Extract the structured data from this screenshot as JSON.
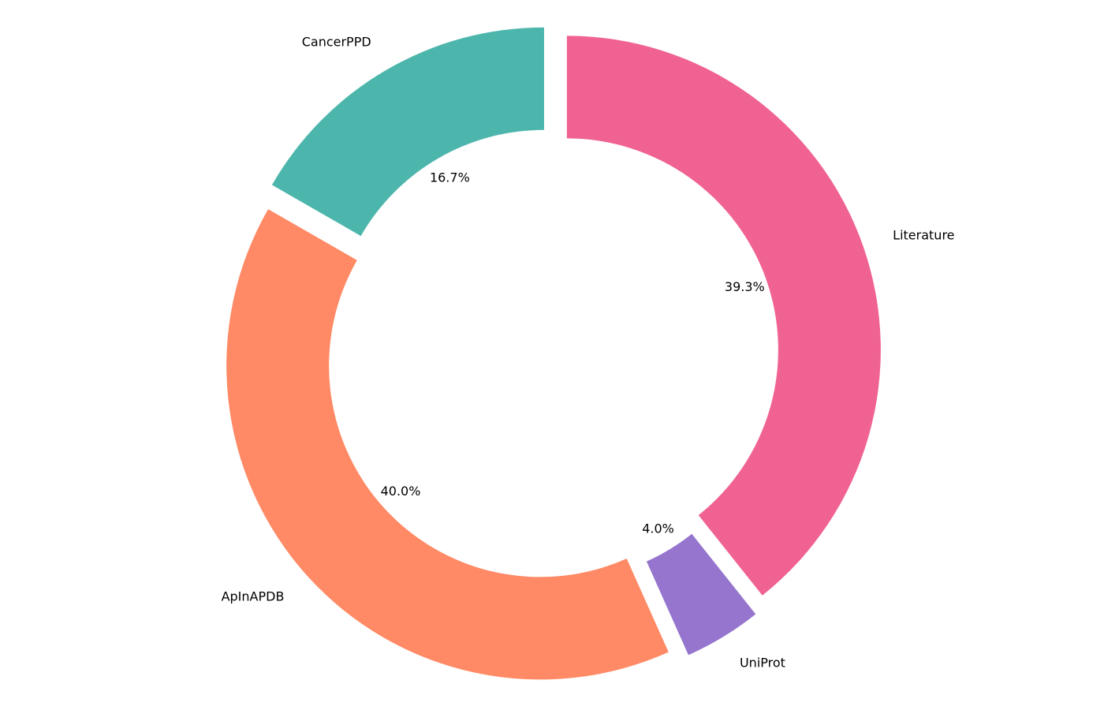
{
  "chart_data": {
    "type": "pie",
    "variant": "donut",
    "title": "",
    "start_angle_deg": 90,
    "direction": "counterclockwise",
    "slices": [
      {
        "label": "CancerPPD",
        "value": 16.7,
        "pct_label": "16.7%",
        "color": "#4DB6AC",
        "explode": true
      },
      {
        "label": "ApInAPDB",
        "value": 40.0,
        "pct_label": "40.0%",
        "color": "#FF8A65",
        "explode": true
      },
      {
        "label": "UniProt",
        "value": 4.0,
        "pct_label": "4.0%",
        "color": "#9575CD",
        "explode": true
      },
      {
        "label": "Literature",
        "value": 39.3,
        "pct_label": "39.3%",
        "color": "#F06292",
        "explode": true
      }
    ],
    "legend": "none"
  }
}
